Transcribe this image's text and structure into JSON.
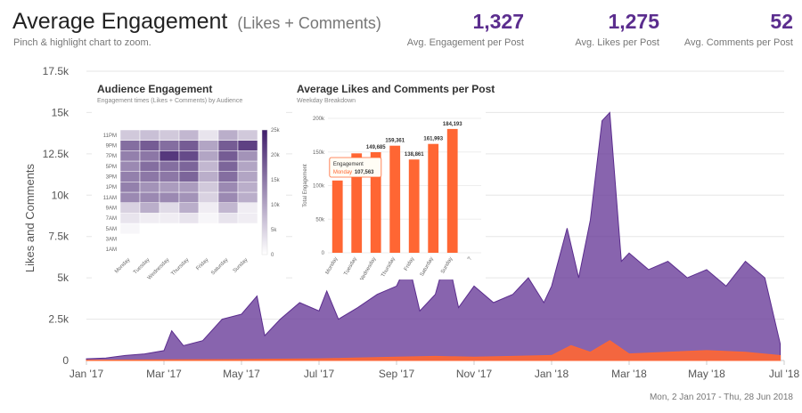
{
  "header": {
    "title": "Average Engagement",
    "subtitle": "(Likes + Comments)",
    "hint": "Pinch & highlight chart to zoom.",
    "stats": [
      {
        "value": "1,327",
        "label": "Avg. Engagement per Post"
      },
      {
        "value": "1,275",
        "label": "Avg. Likes per Post"
      },
      {
        "value": "52",
        "label": "Avg. Comments per Post"
      }
    ]
  },
  "date_range": "Mon, 2 Jan 2017 - Thu, 28 Jun 2018",
  "colors": {
    "accent": "#5b2d8e",
    "area": "#6a3d9a",
    "comments": "#ff6633",
    "bars": "#ff6633",
    "heat_max": "#3f1d6b"
  },
  "chart_data": [
    {
      "type": "area",
      "ylabel": "Likes and Comments",
      "ylim": [
        0,
        17500
      ],
      "yticks": [
        "0",
        "2.5k",
        "5k",
        "7.5k",
        "10k",
        "12.5k",
        "15k",
        "17.5k"
      ],
      "xticks": [
        "Jan '17",
        "Mar '17",
        "May '17",
        "Jul '17",
        "Sep '17",
        "Nov '17",
        "Jan '18",
        "Mar '18",
        "May '18",
        "Jul '18"
      ],
      "xdomain_months": [
        0,
        18
      ],
      "series": [
        {
          "name": "Likes",
          "points": [
            [
              0,
              100
            ],
            [
              0.5,
              150
            ],
            [
              1,
              300
            ],
            [
              1.5,
              400
            ],
            [
              2,
              600
            ],
            [
              2.2,
              1800
            ],
            [
              2.5,
              900
            ],
            [
              3,
              1200
            ],
            [
              3.5,
              2500
            ],
            [
              4,
              2800
            ],
            [
              4.4,
              3900
            ],
            [
              4.6,
              1500
            ],
            [
              5,
              2500
            ],
            [
              5.5,
              3500
            ],
            [
              6,
              3000
            ],
            [
              6.2,
              4200
            ],
            [
              6.5,
              2500
            ],
            [
              7,
              3200
            ],
            [
              7.5,
              4000
            ],
            [
              8,
              4500
            ],
            [
              8.3,
              6000
            ],
            [
              8.6,
              3000
            ],
            [
              9,
              4000
            ],
            [
              9.3,
              6500
            ],
            [
              9.6,
              3200
            ],
            [
              10,
              4500
            ],
            [
              10.5,
              3500
            ],
            [
              11,
              4000
            ],
            [
              11.4,
              5000
            ],
            [
              11.8,
              3500
            ],
            [
              12,
              4500
            ],
            [
              12.4,
              8000
            ],
            [
              12.7,
              5000
            ],
            [
              13,
              8500
            ],
            [
              13.3,
              14500
            ],
            [
              13.5,
              15000
            ],
            [
              13.8,
              6000
            ],
            [
              14,
              6500
            ],
            [
              14.5,
              5500
            ],
            [
              15,
              6000
            ],
            [
              15.5,
              5000
            ],
            [
              16,
              5500
            ],
            [
              16.5,
              4500
            ],
            [
              17,
              6000
            ],
            [
              17.5,
              5000
            ],
            [
              17.9,
              1000
            ]
          ]
        },
        {
          "name": "Comments",
          "points": [
            [
              0,
              20
            ],
            [
              2,
              40
            ],
            [
              4,
              60
            ],
            [
              6,
              100
            ],
            [
              8,
              200
            ],
            [
              9,
              250
            ],
            [
              10,
              200
            ],
            [
              11,
              250
            ],
            [
              12,
              300
            ],
            [
              12.5,
              900
            ],
            [
              13,
              500
            ],
            [
              13.5,
              1200
            ],
            [
              14,
              400
            ],
            [
              15,
              500
            ],
            [
              16,
              600
            ],
            [
              17,
              500
            ],
            [
              17.9,
              300
            ]
          ]
        }
      ]
    },
    {
      "type": "heatmap",
      "title": "Audience Engagement",
      "subtitle": "Engagement times (Likes + Comments) by Audience",
      "x": [
        "Monday",
        "Tuesday",
        "Wednesday",
        "Thursday",
        "Friday",
        "Saturday",
        "Sunday"
      ],
      "y": [
        "1AM",
        "3AM",
        "5AM",
        "7AM",
        "9AM",
        "11AM",
        "1PM",
        "3PM",
        "5PM",
        "7PM",
        "9PM",
        "11PM"
      ],
      "scale_ticks": [
        "25k",
        "20k",
        "15k",
        "10k",
        "5k",
        "0"
      ],
      "zlim": [
        0,
        25000
      ],
      "values": [
        [
          0,
          0,
          0,
          0,
          0,
          0,
          0
        ],
        [
          0,
          0,
          0,
          0,
          0,
          0,
          0
        ],
        [
          1000,
          0,
          0,
          0,
          0,
          0,
          0
        ],
        [
          3000,
          2000,
          2000,
          3000,
          1000,
          3000,
          2000
        ],
        [
          5000,
          9000,
          4000,
          9000,
          2000,
          8000,
          2000
        ],
        [
          13000,
          13000,
          13000,
          12000,
          5000,
          13000,
          9000
        ],
        [
          14000,
          12000,
          11000,
          11000,
          6000,
          13000,
          9000
        ],
        [
          14000,
          15000,
          15000,
          17000,
          9000,
          16000,
          10000
        ],
        [
          13000,
          16000,
          16000,
          17000,
          8000,
          17000,
          10000
        ],
        [
          14000,
          15000,
          22000,
          20000,
          10000,
          18000,
          12000
        ],
        [
          16000,
          18000,
          16000,
          18000,
          10000,
          18000,
          21000
        ],
        [
          6000,
          7000,
          6000,
          8000,
          3000,
          9000,
          6000
        ]
      ]
    },
    {
      "type": "bar",
      "title": "Average Likes and Comments per Post",
      "subtitle": "Weekday Breakdown",
      "ylabel": "Total Engagement",
      "ylim": [
        0,
        200000
      ],
      "yticks": [
        "0",
        "50k",
        "100k",
        "150k",
        "200k"
      ],
      "categories": [
        "Monday",
        "Tuesday",
        "Wednesday",
        "Thursday",
        "Friday",
        "Saturday",
        "Sunday",
        "?"
      ],
      "values": [
        107563,
        148000,
        149685,
        159361,
        138861,
        161993,
        184193,
        null
      ],
      "data_labels": [
        "",
        "",
        "149,685",
        "159,361",
        "138,861",
        "161,993",
        "184,193",
        ""
      ],
      "tooltip": {
        "title": "Engagement",
        "category": "Monday",
        "value": "107,563"
      }
    }
  ]
}
